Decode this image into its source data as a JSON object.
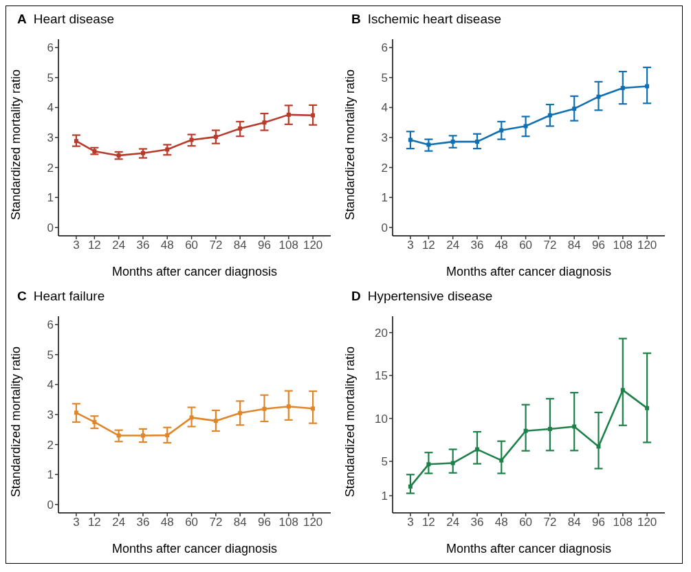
{
  "chart_data": [
    {
      "type": "line",
      "title": "Heart disease",
      "annotations": [
        "A"
      ],
      "xlabel": "Months after cancer diagnosis",
      "ylabel": "Standardized mortality ratio",
      "x": [
        3,
        12,
        24,
        36,
        48,
        60,
        72,
        84,
        96,
        108,
        120
      ],
      "xlim": [
        -5.8,
        128.8
      ],
      "xticks": [
        3,
        12,
        24,
        36,
        48,
        60,
        72,
        84,
        96,
        108,
        120
      ],
      "ylim": [
        -0.28,
        6.28
      ],
      "yticks": [
        0,
        1,
        2,
        3,
        4,
        5,
        6
      ],
      "grid": false,
      "legend": false,
      "marker": "square",
      "line_style": "solid",
      "series": [
        {
          "color": "#b83a2a",
          "values": [
            2.88,
            2.54,
            2.4,
            2.48,
            2.6,
            2.92,
            3.02,
            3.3,
            3.5,
            3.76,
            3.74
          ],
          "errors": [
            [
              2.71,
              3.08
            ],
            [
              2.44,
              2.66
            ],
            [
              2.28,
              2.52
            ],
            [
              2.32,
              2.62
            ],
            [
              2.42,
              2.76
            ],
            [
              2.72,
              3.1
            ],
            [
              2.8,
              3.24
            ],
            [
              3.04,
              3.53
            ],
            [
              3.24,
              3.8
            ],
            [
              3.44,
              4.07
            ],
            [
              3.42,
              4.08
            ]
          ]
        }
      ]
    },
    {
      "type": "line",
      "title": "Ischemic heart disease",
      "annotations": [
        "B"
      ],
      "xlabel": "Months after cancer diagnosis",
      "ylabel": "Standardized mortality ratio",
      "x": [
        3,
        12,
        24,
        36,
        48,
        60,
        72,
        84,
        96,
        108,
        120
      ],
      "xlim": [
        -5.8,
        128.8
      ],
      "xticks": [
        3,
        12,
        24,
        36,
        48,
        60,
        72,
        84,
        96,
        108,
        120
      ],
      "ylim": [
        -0.28,
        6.28
      ],
      "yticks": [
        0,
        1,
        2,
        3,
        4,
        5,
        6
      ],
      "grid": false,
      "legend": false,
      "marker": "square",
      "line_style": "solid",
      "series": [
        {
          "color": "#0f6fb3",
          "values": [
            2.92,
            2.76,
            2.86,
            2.86,
            3.24,
            3.38,
            3.74,
            3.96,
            4.36,
            4.65,
            4.71
          ],
          "errors": [
            [
              2.63,
              3.2
            ],
            [
              2.55,
              2.94
            ],
            [
              2.66,
              3.06
            ],
            [
              2.63,
              3.12
            ],
            [
              2.94,
              3.53
            ],
            [
              3.04,
              3.7
            ],
            [
              3.38,
              4.1
            ],
            [
              3.56,
              4.38
            ],
            [
              3.91,
              4.86
            ],
            [
              4.12,
              5.2
            ],
            [
              4.14,
              5.34
            ]
          ]
        }
      ]
    },
    {
      "type": "line",
      "title": "Heart failure",
      "annotations": [
        "C"
      ],
      "xlabel": "Months after cancer diagnosis",
      "ylabel": "Standardized mortality ratio",
      "x": [
        3,
        12,
        24,
        36,
        48,
        60,
        72,
        84,
        96,
        108,
        120
      ],
      "xlim": [
        -5.8,
        128.8
      ],
      "xticks": [
        3,
        12,
        24,
        36,
        48,
        60,
        72,
        84,
        96,
        108,
        120
      ],
      "ylim": [
        -0.28,
        6.28
      ],
      "yticks": [
        0,
        1,
        2,
        3,
        4,
        5,
        6
      ],
      "grid": false,
      "legend": false,
      "marker": "square",
      "line_style": "solid",
      "series": [
        {
          "color": "#e0862a",
          "values": [
            3.06,
            2.75,
            2.3,
            2.3,
            2.31,
            2.9,
            2.79,
            3.05,
            3.19,
            3.27,
            3.2
          ],
          "errors": [
            [
              2.75,
              3.36
            ],
            [
              2.54,
              2.95
            ],
            [
              2.1,
              2.48
            ],
            [
              2.08,
              2.52
            ],
            [
              2.06,
              2.57
            ],
            [
              2.6,
              3.24
            ],
            [
              2.45,
              3.14
            ],
            [
              2.65,
              3.45
            ],
            [
              2.77,
              3.65
            ],
            [
              2.82,
              3.79
            ],
            [
              2.71,
              3.78
            ]
          ]
        }
      ]
    },
    {
      "type": "line",
      "title": "Hypertensive disease",
      "annotations": [
        "D"
      ],
      "xlabel": "Months after cancer diagnosis",
      "ylabel": "Standardized mortality ratio",
      "x": [
        3,
        12,
        24,
        36,
        48,
        60,
        72,
        84,
        96,
        108,
        120
      ],
      "xlim": [
        -5.8,
        128.8
      ],
      "xticks": [
        3,
        12,
        24,
        36,
        48,
        60,
        72,
        84,
        96,
        108,
        120
      ],
      "ylim": [
        -1,
        21.9
      ],
      "yticks": [
        1,
        5,
        10,
        15,
        20
      ],
      "grid": false,
      "legend": false,
      "marker": "square",
      "line_style": "solid",
      "series": [
        {
          "color": "#1e8049",
          "values": [
            2.07,
            4.66,
            4.8,
            6.4,
            5.11,
            8.55,
            8.77,
            9.05,
            6.73,
            13.3,
            11.2
          ],
          "errors": [
            [
              1.28,
              3.46
            ],
            [
              3.6,
              6.03
            ],
            [
              3.66,
              6.4
            ],
            [
              4.72,
              8.44
            ],
            [
              3.6,
              7.35
            ],
            [
              6.23,
              11.6
            ],
            [
              6.26,
              12.3
            ],
            [
              6.26,
              13.0
            ],
            [
              4.16,
              10.7
            ],
            [
              9.19,
              19.3
            ],
            [
              7.21,
              17.6
            ]
          ]
        }
      ]
    }
  ]
}
